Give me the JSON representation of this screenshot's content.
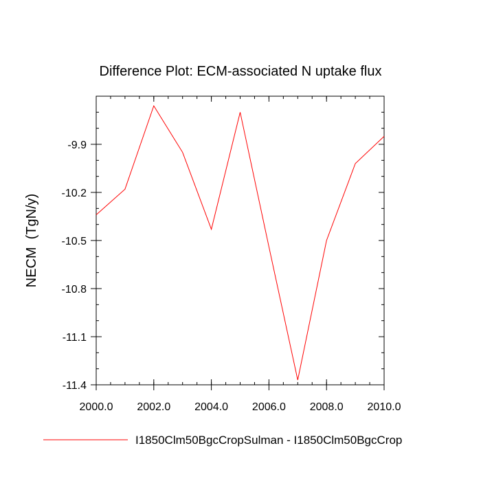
{
  "chart_data": {
    "type": "line",
    "title": "Difference Plot: ECM-associated N uptake flux",
    "ylabel": "NECM  (TgN/y)",
    "xlabel": "",
    "xlim": [
      2000.0,
      2010.0
    ],
    "ylim": [
      -11.4,
      -9.6
    ],
    "x_ticks": [
      2000.0,
      2002.0,
      2004.0,
      2006.0,
      2008.0,
      2010.0
    ],
    "x_tick_labels": [
      "2000.0",
      "2002.0",
      "2004.0",
      "2006.0",
      "2008.0",
      "2010.0"
    ],
    "y_ticks": [
      -9.9,
      -10.2,
      -10.5,
      -10.8,
      -11.1,
      -11.4
    ],
    "y_tick_labels": [
      "-9.9",
      "-10.2",
      "-10.5",
      "-10.8",
      "-11.1",
      "-11.4"
    ],
    "grid": false,
    "legend_position": "bottom",
    "series": [
      {
        "name": "I1850Clm50BgcCropSulman - I1850Clm50BgcCrop",
        "color": "#ff0000",
        "x": [
          2000,
          2001,
          2002,
          2003,
          2004,
          2005,
          2006,
          2007,
          2008,
          2009,
          2010
        ],
        "y": [
          -10.34,
          -10.18,
          -9.66,
          -9.95,
          -10.43,
          -9.7,
          -10.54,
          -11.37,
          -10.5,
          -10.02,
          -9.85
        ]
      }
    ]
  }
}
